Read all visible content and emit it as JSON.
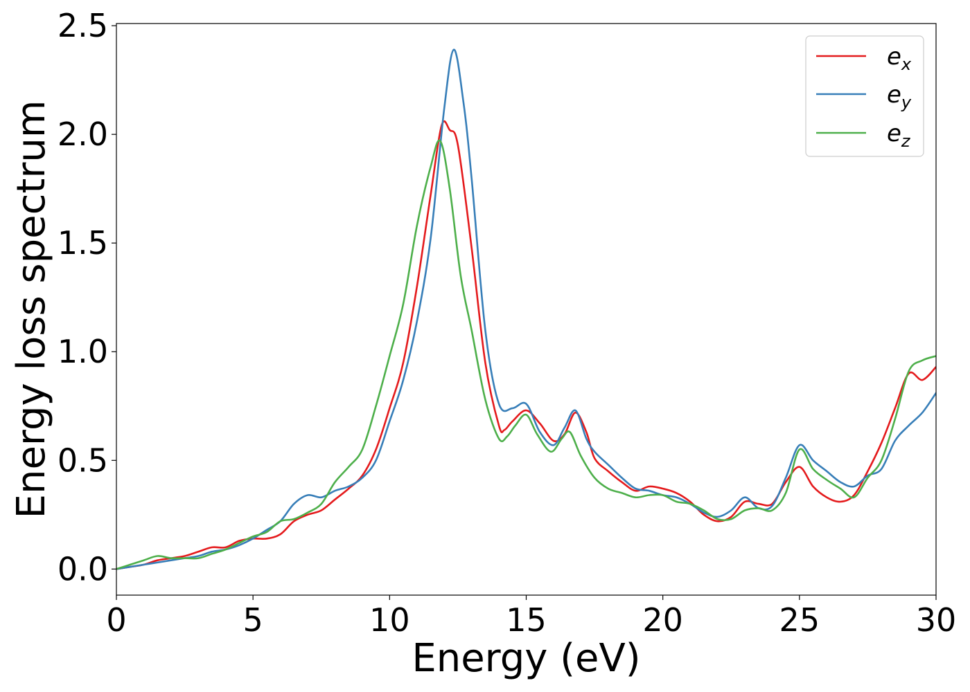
{
  "chart_data": {
    "type": "line",
    "title": "",
    "xlabel": "Energy (eV)",
    "ylabel": "Energy loss spectrum",
    "xlim": [
      0,
      30
    ],
    "ylim": [
      -0.12,
      2.51
    ],
    "xticks": [
      0,
      5,
      10,
      15,
      20,
      25,
      30
    ],
    "xtick_labels": [
      "0",
      "5",
      "10",
      "15",
      "20",
      "25",
      "30"
    ],
    "yticks": [
      0.0,
      0.5,
      1.0,
      1.5,
      2.0,
      2.5
    ],
    "ytick_labels": [
      "0.0",
      "0.5",
      "1.0",
      "1.5",
      "2.0",
      "2.5"
    ],
    "grid": false,
    "legend_position": "top-right",
    "series": [
      {
        "name": "e_x",
        "label_base": "e",
        "label_sub": "x",
        "color": "#e41a1c",
        "x": [
          0,
          0.5,
          1,
          1.5,
          2,
          2.5,
          3,
          3.5,
          4,
          4.5,
          5,
          5.5,
          6,
          6.5,
          7,
          7.5,
          8,
          8.5,
          9,
          9.5,
          10,
          10.5,
          11,
          11.5,
          11.9,
          12.2,
          12.5,
          13,
          13.5,
          14,
          14.2,
          14.5,
          15,
          15.5,
          16,
          16.4,
          16.8,
          17.2,
          17.5,
          18,
          18.5,
          19,
          19.5,
          20,
          20.5,
          21,
          21.5,
          22,
          22.5,
          23,
          23.5,
          24,
          24.5,
          25,
          25.5,
          26,
          26.5,
          27,
          27.5,
          28,
          28.5,
          29,
          29.5,
          30
        ],
        "y": [
          0.0,
          0.01,
          0.02,
          0.04,
          0.05,
          0.06,
          0.08,
          0.1,
          0.1,
          0.13,
          0.14,
          0.14,
          0.16,
          0.22,
          0.25,
          0.27,
          0.32,
          0.37,
          0.43,
          0.55,
          0.74,
          0.95,
          1.3,
          1.72,
          2.04,
          2.02,
          1.95,
          1.48,
          0.95,
          0.66,
          0.64,
          0.68,
          0.73,
          0.67,
          0.59,
          0.62,
          0.72,
          0.63,
          0.51,
          0.45,
          0.4,
          0.36,
          0.38,
          0.37,
          0.35,
          0.31,
          0.25,
          0.22,
          0.24,
          0.31,
          0.3,
          0.3,
          0.4,
          0.47,
          0.38,
          0.33,
          0.31,
          0.34,
          0.45,
          0.58,
          0.74,
          0.9,
          0.87,
          0.93
        ]
      },
      {
        "name": "e_y",
        "label_base": "e",
        "label_sub": "y",
        "color": "#377eb8",
        "x": [
          0,
          0.5,
          1,
          1.5,
          2,
          2.5,
          3,
          3.5,
          4,
          4.5,
          5,
          5.5,
          6,
          6.5,
          7,
          7.5,
          8,
          8.5,
          9,
          9.5,
          10,
          10.5,
          11,
          11.5,
          12,
          12.35,
          12.7,
          13,
          13.5,
          14,
          14.5,
          15,
          15.5,
          16,
          16.4,
          16.8,
          17.2,
          17.5,
          18,
          18.5,
          19,
          19.5,
          20,
          20.5,
          21,
          21.5,
          22,
          22.5,
          23,
          23.5,
          24,
          24.5,
          25,
          25.5,
          26,
          26.5,
          27,
          27.5,
          28,
          28.5,
          29,
          29.5,
          30
        ],
        "y": [
          0.0,
          0.01,
          0.02,
          0.03,
          0.04,
          0.05,
          0.06,
          0.08,
          0.09,
          0.11,
          0.14,
          0.18,
          0.22,
          0.3,
          0.34,
          0.33,
          0.36,
          0.38,
          0.42,
          0.5,
          0.68,
          0.87,
          1.14,
          1.52,
          2.12,
          2.39,
          2.15,
          1.8,
          1.1,
          0.76,
          0.74,
          0.76,
          0.63,
          0.57,
          0.65,
          0.73,
          0.6,
          0.54,
          0.48,
          0.42,
          0.37,
          0.36,
          0.34,
          0.33,
          0.3,
          0.26,
          0.24,
          0.27,
          0.33,
          0.28,
          0.29,
          0.42,
          0.57,
          0.5,
          0.45,
          0.4,
          0.38,
          0.43,
          0.46,
          0.59,
          0.66,
          0.72,
          0.81
        ]
      },
      {
        "name": "e_z",
        "label_base": "e",
        "label_sub": "z",
        "color": "#4daf4a",
        "x": [
          0,
          0.5,
          1,
          1.5,
          2,
          2.5,
          3,
          3.5,
          4,
          4.5,
          5,
          5.5,
          6,
          6.5,
          7,
          7.5,
          8,
          8.5,
          9,
          9.5,
          10,
          10.5,
          11,
          11.5,
          11.85,
          12.2,
          12.6,
          13,
          13.5,
          14,
          14.3,
          14.6,
          15,
          15.4,
          15.9,
          16.3,
          16.6,
          17,
          17.5,
          18,
          18.5,
          19,
          19.5,
          20,
          20.5,
          21,
          21.5,
          22,
          22.5,
          23,
          23.5,
          24,
          24.5,
          25,
          25.5,
          26,
          26.5,
          27,
          27.5,
          28,
          28.5,
          29,
          29.5,
          30
        ],
        "y": [
          0.0,
          0.02,
          0.04,
          0.06,
          0.05,
          0.05,
          0.05,
          0.07,
          0.09,
          0.12,
          0.15,
          0.17,
          0.22,
          0.23,
          0.26,
          0.3,
          0.4,
          0.47,
          0.55,
          0.75,
          0.98,
          1.22,
          1.58,
          1.85,
          1.97,
          1.75,
          1.35,
          1.1,
          0.78,
          0.6,
          0.61,
          0.66,
          0.71,
          0.62,
          0.54,
          0.6,
          0.63,
          0.52,
          0.42,
          0.37,
          0.35,
          0.33,
          0.34,
          0.34,
          0.31,
          0.3,
          0.27,
          0.23,
          0.23,
          0.27,
          0.28,
          0.27,
          0.35,
          0.55,
          0.46,
          0.41,
          0.37,
          0.33,
          0.42,
          0.5,
          0.69,
          0.91,
          0.96,
          0.98
        ]
      }
    ]
  }
}
